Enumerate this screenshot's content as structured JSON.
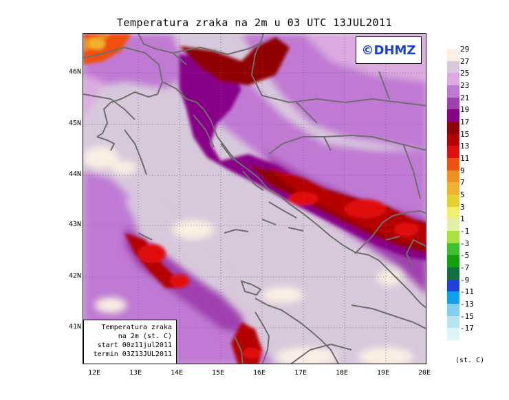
{
  "title": "Temperatura zraka na 2m u 03 UTC 13JUL2011",
  "badge": "©DHMZ",
  "info_box": {
    "line1": "Temperatura zraka",
    "line2": "na 2m (st. C)",
    "line3": "start 00z11jul2011",
    "line4": "termin 03Z13JUL2011"
  },
  "lat_labels": [
    "46N",
    "45N",
    "44N",
    "43N",
    "42N",
    "41N"
  ],
  "lon_labels": [
    "12E",
    "13E",
    "14E",
    "15E",
    "16E",
    "17E",
    "18E",
    "19E",
    "20E"
  ],
  "legend": {
    "units": "(st. C)",
    "labels": [
      "29",
      "27",
      "25",
      "23",
      "21",
      "19",
      "17",
      "15",
      "13",
      "11",
      "9",
      "7",
      "5",
      "3",
      "1",
      "-1",
      "-3",
      "-5",
      "-7",
      "-9",
      "-11",
      "-13",
      "-15",
      "-17"
    ],
    "colors": [
      "#fbefe3",
      "#d8c8dc",
      "#dcaae0",
      "#c07ad4",
      "#a040b0",
      "#880088",
      "#900000",
      "#b40000",
      "#e01010",
      "#f05010",
      "#f09020",
      "#f0b030",
      "#e6d030",
      "#f0f070",
      "#e0f0a8",
      "#a8e040",
      "#40c030",
      "#10a010",
      "#107040",
      "#2040e0",
      "#10a0f0",
      "#80d0f0",
      "#b8e4f0",
      "#e0f4f8"
    ]
  }
}
